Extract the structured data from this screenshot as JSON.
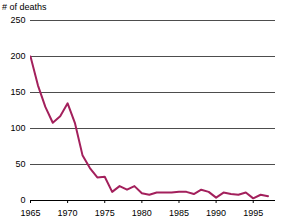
{
  "chart_data": {
    "type": "line",
    "y_label": "# of deaths",
    "x": [
      1965,
      1966,
      1967,
      1968,
      1969,
      1970,
      1971,
      1972,
      1973,
      1974,
      1975,
      1976,
      1977,
      1978,
      1979,
      1980,
      1981,
      1982,
      1983,
      1984,
      1985,
      1986,
      1987,
      1988,
      1989,
      1990,
      1991,
      1992,
      1993,
      1994,
      1995,
      1996,
      1997
    ],
    "values": [
      200,
      160,
      130,
      108,
      117,
      135,
      107,
      63,
      45,
      32,
      33,
      12,
      20,
      15,
      20,
      10,
      8,
      11,
      11,
      11,
      12,
      12,
      9,
      15,
      12,
      4,
      11,
      9,
      8,
      11,
      3,
      8,
      6
    ],
    "color": "#a3205c",
    "xlim": [
      1965,
      1998
    ],
    "xticks": [
      1965,
      1970,
      1975,
      1980,
      1985,
      1990,
      1995
    ],
    "ylim": [
      0,
      250
    ],
    "yticks": [
      0,
      50,
      100,
      150,
      200,
      250
    ],
    "grid": true
  }
}
